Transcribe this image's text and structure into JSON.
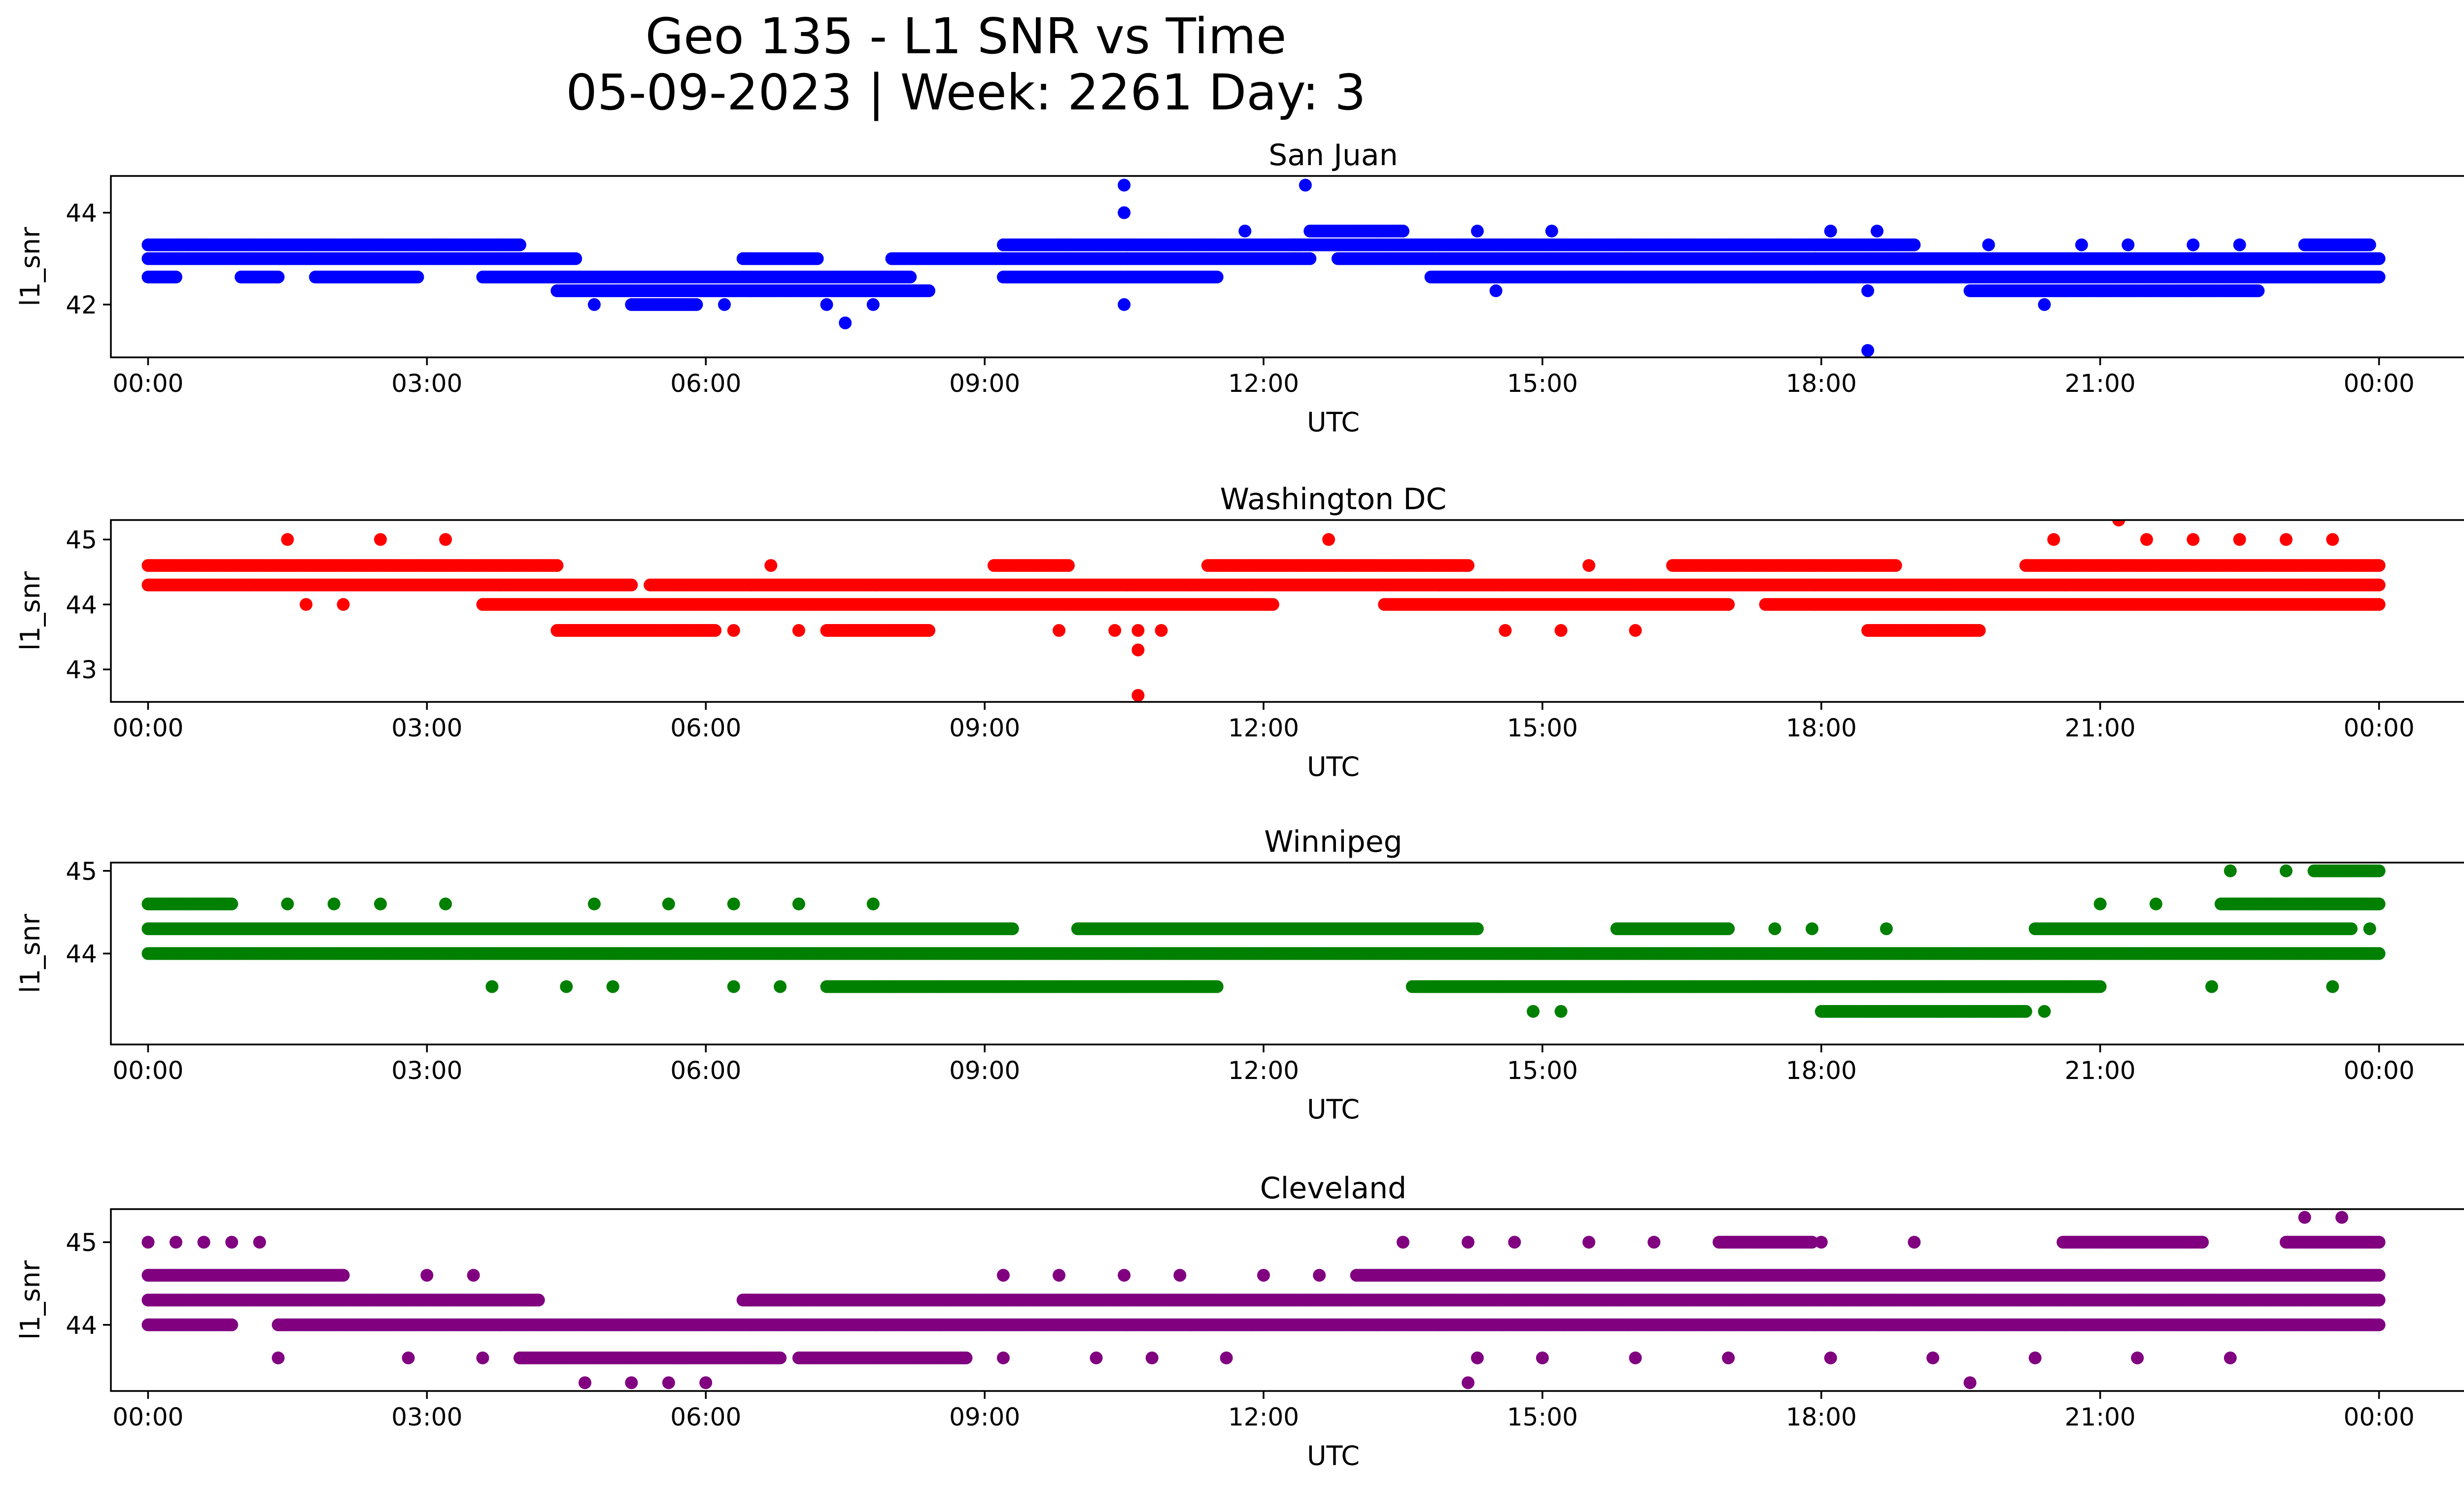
{
  "title_line1": "Geo 135 - L1 SNR vs Time",
  "title_line2": "05-09-2023 | Week: 2261 Day: 3",
  "chart_data": [
    {
      "type": "scatter",
      "title": "San Juan",
      "xlabel": "UTC",
      "ylabel": "l1_snr",
      "color": "#0000ff",
      "xlim": [
        -0.4,
        25.9
      ],
      "ylim": [
        40.85,
        44.8
      ],
      "xticks": [
        0,
        3,
        6,
        9,
        12,
        15,
        18,
        21,
        24
      ],
      "xtick_labels": [
        "00:00",
        "03:00",
        "06:00",
        "09:00",
        "12:00",
        "15:00",
        "18:00",
        "21:00",
        "00:00"
      ],
      "yticks": [
        42,
        44
      ],
      "ytick_labels": [
        "42",
        "44"
      ],
      "bands": [
        {
          "y": 43.3,
          "x_start": 0.0,
          "x_end": 4.0
        },
        {
          "y": 43.0,
          "x_start": 0.0,
          "x_end": 4.6
        },
        {
          "y": 42.6,
          "x_start": 0.0,
          "x_end": 0.3
        },
        {
          "y": 42.6,
          "x_start": 1.0,
          "x_end": 1.4
        },
        {
          "y": 42.6,
          "x_start": 1.8,
          "x_end": 2.9
        },
        {
          "y": 42.6,
          "x_start": 3.6,
          "x_end": 4.6
        },
        {
          "y": 42.6,
          "x_start": 4.4,
          "x_end": 8.2
        },
        {
          "y": 42.3,
          "x_start": 4.4,
          "x_end": 8.4
        },
        {
          "y": 42.0,
          "x_start": 5.2,
          "x_end": 5.9
        },
        {
          "y": 43.0,
          "x_start": 6.4,
          "x_end": 7.2
        },
        {
          "y": 43.0,
          "x_start": 8.0,
          "x_end": 12.5
        },
        {
          "y": 43.3,
          "x_start": 9.2,
          "x_end": 12.4
        },
        {
          "y": 42.6,
          "x_start": 9.2,
          "x_end": 11.5
        },
        {
          "y": 43.6,
          "x_start": 12.5,
          "x_end": 13.5
        },
        {
          "y": 43.3,
          "x_start": 12.3,
          "x_end": 19.0
        },
        {
          "y": 43.0,
          "x_start": 12.8,
          "x_end": 24.0
        },
        {
          "y": 42.6,
          "x_start": 13.8,
          "x_end": 24.0
        },
        {
          "y": 42.3,
          "x_start": 19.6,
          "x_end": 22.7
        },
        {
          "y": 43.3,
          "x_start": 23.2,
          "x_end": 23.9
        }
      ],
      "points": [
        {
          "x": 10.5,
          "y": 44.6
        },
        {
          "x": 10.5,
          "y": 44.0
        },
        {
          "x": 10.5,
          "y": 42.0
        },
        {
          "x": 12.45,
          "y": 44.6
        },
        {
          "x": 18.5,
          "y": 41.0
        },
        {
          "x": 7.5,
          "y": 41.6
        },
        {
          "x": 7.3,
          "y": 42.0
        },
        {
          "x": 7.8,
          "y": 42.0
        },
        {
          "x": 4.8,
          "y": 42.0
        },
        {
          "x": 6.2,
          "y": 42.0
        },
        {
          "x": 20.4,
          "y": 42.0
        },
        {
          "x": 14.5,
          "y": 42.3
        },
        {
          "x": 18.5,
          "y": 42.3
        },
        {
          "x": 14.3,
          "y": 43.6
        },
        {
          "x": 15.1,
          "y": 43.6
        },
        {
          "x": 18.1,
          "y": 43.6
        },
        {
          "x": 18.6,
          "y": 43.6
        },
        {
          "x": 11.8,
          "y": 43.6
        },
        {
          "x": 20.8,
          "y": 43.3
        },
        {
          "x": 21.3,
          "y": 43.3
        },
        {
          "x": 22.0,
          "y": 43.3
        },
        {
          "x": 19.8,
          "y": 43.3
        },
        {
          "x": 22.5,
          "y": 43.3
        }
      ]
    },
    {
      "type": "scatter",
      "title": "Washington DC",
      "xlabel": "UTC",
      "ylabel": "l1_snr",
      "color": "#ff0000",
      "xlim": [
        -0.4,
        25.9
      ],
      "ylim": [
        42.5,
        45.3
      ],
      "xticks": [
        0,
        3,
        6,
        9,
        12,
        15,
        18,
        21,
        24
      ],
      "xtick_labels": [
        "00:00",
        "03:00",
        "06:00",
        "09:00",
        "12:00",
        "15:00",
        "18:00",
        "21:00",
        "00:00"
      ],
      "yticks": [
        43,
        44,
        45
      ],
      "ytick_labels": [
        "43",
        "44",
        "45"
      ],
      "bands": [
        {
          "y": 44.6,
          "x_start": 0.0,
          "x_end": 4.4
        },
        {
          "y": 44.3,
          "x_start": 0.0,
          "x_end": 5.2
        },
        {
          "y": 44.0,
          "x_start": 3.6,
          "x_end": 12.1
        },
        {
          "y": 43.6,
          "x_start": 4.4,
          "x_end": 6.1
        },
        {
          "y": 43.6,
          "x_start": 7.3,
          "x_end": 8.4
        },
        {
          "y": 44.3,
          "x_start": 5.4,
          "x_end": 24.0
        },
        {
          "y": 44.6,
          "x_start": 9.1,
          "x_end": 9.9
        },
        {
          "y": 44.6,
          "x_start": 11.4,
          "x_end": 14.2
        },
        {
          "y": 44.0,
          "x_start": 13.3,
          "x_end": 17.0
        },
        {
          "y": 44.6,
          "x_start": 16.4,
          "x_end": 18.8
        },
        {
          "y": 44.0,
          "x_start": 17.4,
          "x_end": 24.0
        },
        {
          "y": 43.6,
          "x_start": 18.5,
          "x_end": 19.7
        },
        {
          "y": 44.6,
          "x_start": 20.2,
          "x_end": 24.0
        }
      ],
      "points": [
        {
          "x": 1.5,
          "y": 45.0
        },
        {
          "x": 2.5,
          "y": 45.0
        },
        {
          "x": 3.2,
          "y": 45.0
        },
        {
          "x": 1.7,
          "y": 44.0
        },
        {
          "x": 2.1,
          "y": 44.0
        },
        {
          "x": 12.7,
          "y": 45.0
        },
        {
          "x": 21.2,
          "y": 45.3
        },
        {
          "x": 20.5,
          "y": 45.0
        },
        {
          "x": 21.5,
          "y": 45.0
        },
        {
          "x": 22.0,
          "y": 45.0
        },
        {
          "x": 22.5,
          "y": 45.0
        },
        {
          "x": 23.0,
          "y": 45.0
        },
        {
          "x": 23.5,
          "y": 45.0
        },
        {
          "x": 10.65,
          "y": 42.6
        },
        {
          "x": 10.65,
          "y": 43.3
        },
        {
          "x": 10.65,
          "y": 43.6
        },
        {
          "x": 9.8,
          "y": 43.6
        },
        {
          "x": 10.4,
          "y": 43.6
        },
        {
          "x": 10.9,
          "y": 43.6
        },
        {
          "x": 6.7,
          "y": 44.6
        },
        {
          "x": 15.5,
          "y": 44.6
        },
        {
          "x": 14.6,
          "y": 43.6
        },
        {
          "x": 15.2,
          "y": 43.6
        },
        {
          "x": 16.0,
          "y": 43.6
        },
        {
          "x": 6.3,
          "y": 43.6
        },
        {
          "x": 7.0,
          "y": 43.6
        }
      ]
    },
    {
      "type": "scatter",
      "title": "Winnipeg",
      "xlabel": "UTC",
      "ylabel": "l1_snr",
      "color": "#008000",
      "xlim": [
        -0.4,
        25.9
      ],
      "ylim": [
        42.9,
        45.1
      ],
      "xticks": [
        0,
        3,
        6,
        9,
        12,
        15,
        18,
        21,
        24
      ],
      "xtick_labels": [
        "00:00",
        "03:00",
        "06:00",
        "09:00",
        "12:00",
        "15:00",
        "18:00",
        "21:00",
        "00:00"
      ],
      "yticks": [
        44,
        45
      ],
      "ytick_labels": [
        "44",
        "45"
      ],
      "bands": [
        {
          "y": 44.6,
          "x_start": 0.0,
          "x_end": 0.9
        },
        {
          "y": 44.3,
          "x_start": 0.0,
          "x_end": 9.3
        },
        {
          "y": 44.0,
          "x_start": 0.0,
          "x_end": 24.0
        },
        {
          "y": 44.3,
          "x_start": 10.0,
          "x_end": 14.3
        },
        {
          "y": 43.6,
          "x_start": 7.3,
          "x_end": 11.5
        },
        {
          "y": 43.6,
          "x_start": 13.6,
          "x_end": 21.0
        },
        {
          "y": 43.3,
          "x_start": 18.0,
          "x_end": 20.2
        },
        {
          "y": 44.3,
          "x_start": 15.8,
          "x_end": 17.0
        },
        {
          "y": 44.3,
          "x_start": 20.3,
          "x_end": 23.7
        },
        {
          "y": 44.6,
          "x_start": 22.3,
          "x_end": 24.0
        },
        {
          "y": 45.0,
          "x_start": 23.3,
          "x_end": 24.0
        }
      ],
      "points": [
        {
          "x": 1.5,
          "y": 44.6
        },
        {
          "x": 2.0,
          "y": 44.6
        },
        {
          "x": 2.5,
          "y": 44.6
        },
        {
          "x": 3.2,
          "y": 44.6
        },
        {
          "x": 4.8,
          "y": 44.6
        },
        {
          "x": 5.6,
          "y": 44.6
        },
        {
          "x": 6.3,
          "y": 44.6
        },
        {
          "x": 7.0,
          "y": 44.6
        },
        {
          "x": 7.8,
          "y": 44.6
        },
        {
          "x": 3.7,
          "y": 43.6
        },
        {
          "x": 4.5,
          "y": 43.6
        },
        {
          "x": 5.0,
          "y": 43.6
        },
        {
          "x": 6.3,
          "y": 43.6
        },
        {
          "x": 6.8,
          "y": 43.6
        },
        {
          "x": 14.9,
          "y": 43.3
        },
        {
          "x": 15.2,
          "y": 43.3
        },
        {
          "x": 20.4,
          "y": 43.3
        },
        {
          "x": 22.2,
          "y": 43.6
        },
        {
          "x": 23.5,
          "y": 43.6
        },
        {
          "x": 22.4,
          "y": 45.0
        },
        {
          "x": 23.0,
          "y": 45.0
        },
        {
          "x": 21.0,
          "y": 44.6
        },
        {
          "x": 21.6,
          "y": 44.6
        },
        {
          "x": 23.9,
          "y": 44.3
        },
        {
          "x": 17.5,
          "y": 44.3
        },
        {
          "x": 17.9,
          "y": 44.3
        },
        {
          "x": 18.7,
          "y": 44.3
        }
      ]
    },
    {
      "type": "scatter",
      "title": "Cleveland",
      "xlabel": "UTC",
      "ylabel": "l1_snr",
      "color": "#800080",
      "xlim": [
        -0.4,
        25.9
      ],
      "ylim": [
        43.2,
        45.4
      ],
      "xticks": [
        0,
        3,
        6,
        9,
        12,
        15,
        18,
        21,
        24
      ],
      "xtick_labels": [
        "00:00",
        "03:00",
        "06:00",
        "09:00",
        "12:00",
        "15:00",
        "18:00",
        "21:00",
        "00:00"
      ],
      "yticks": [
        44,
        45
      ],
      "ytick_labels": [
        "44",
        "45"
      ],
      "bands": [
        {
          "y": 44.6,
          "x_start": 0.0,
          "x_end": 2.1
        },
        {
          "y": 44.3,
          "x_start": 0.0,
          "x_end": 4.2
        },
        {
          "y": 44.0,
          "x_start": 0.0,
          "x_end": 0.9
        },
        {
          "y": 44.0,
          "x_start": 1.4,
          "x_end": 24.0
        },
        {
          "y": 43.6,
          "x_start": 4.0,
          "x_end": 6.8
        },
        {
          "y": 43.6,
          "x_start": 7.0,
          "x_end": 8.8
        },
        {
          "y": 44.3,
          "x_start": 6.4,
          "x_end": 24.0
        },
        {
          "y": 44.6,
          "x_start": 13.0,
          "x_end": 24.0
        },
        {
          "y": 45.0,
          "x_start": 16.9,
          "x_end": 17.9
        },
        {
          "y": 45.0,
          "x_start": 20.6,
          "x_end": 22.1
        },
        {
          "y": 45.0,
          "x_start": 23.0,
          "x_end": 24.0
        }
      ],
      "points": [
        {
          "x": 0.0,
          "y": 45.0
        },
        {
          "x": 0.3,
          "y": 45.0
        },
        {
          "x": 0.6,
          "y": 45.0
        },
        {
          "x": 0.9,
          "y": 45.0
        },
        {
          "x": 1.2,
          "y": 45.0
        },
        {
          "x": 1.4,
          "y": 43.6
        },
        {
          "x": 2.8,
          "y": 43.6
        },
        {
          "x": 3.6,
          "y": 43.6
        },
        {
          "x": 3.0,
          "y": 44.6
        },
        {
          "x": 3.5,
          "y": 44.6
        },
        {
          "x": 4.7,
          "y": 43.3
        },
        {
          "x": 5.2,
          "y": 43.3
        },
        {
          "x": 5.6,
          "y": 43.3
        },
        {
          "x": 6.0,
          "y": 43.3
        },
        {
          "x": 9.2,
          "y": 44.6
        },
        {
          "x": 9.8,
          "y": 44.6
        },
        {
          "x": 10.5,
          "y": 44.6
        },
        {
          "x": 11.1,
          "y": 44.6
        },
        {
          "x": 12.0,
          "y": 44.6
        },
        {
          "x": 12.6,
          "y": 44.6
        },
        {
          "x": 9.2,
          "y": 43.6
        },
        {
          "x": 10.2,
          "y": 43.6
        },
        {
          "x": 10.8,
          "y": 43.6
        },
        {
          "x": 11.6,
          "y": 43.6
        },
        {
          "x": 13.5,
          "y": 45.0
        },
        {
          "x": 14.2,
          "y": 45.0
        },
        {
          "x": 14.7,
          "y": 45.0
        },
        {
          "x": 15.5,
          "y": 45.0
        },
        {
          "x": 16.2,
          "y": 45.0
        },
        {
          "x": 18.0,
          "y": 45.0
        },
        {
          "x": 19.0,
          "y": 45.0
        },
        {
          "x": 14.2,
          "y": 43.3
        },
        {
          "x": 19.6,
          "y": 43.3
        },
        {
          "x": 23.2,
          "y": 45.3
        },
        {
          "x": 23.6,
          "y": 45.3
        },
        {
          "x": 14.3,
          "y": 43.6
        },
        {
          "x": 15.0,
          "y": 43.6
        },
        {
          "x": 16.0,
          "y": 43.6
        },
        {
          "x": 17.0,
          "y": 43.6
        },
        {
          "x": 18.1,
          "y": 43.6
        },
        {
          "x": 19.2,
          "y": 43.6
        },
        {
          "x": 20.3,
          "y": 43.6
        },
        {
          "x": 21.4,
          "y": 43.6
        },
        {
          "x": 22.4,
          "y": 43.6
        }
      ]
    }
  ]
}
